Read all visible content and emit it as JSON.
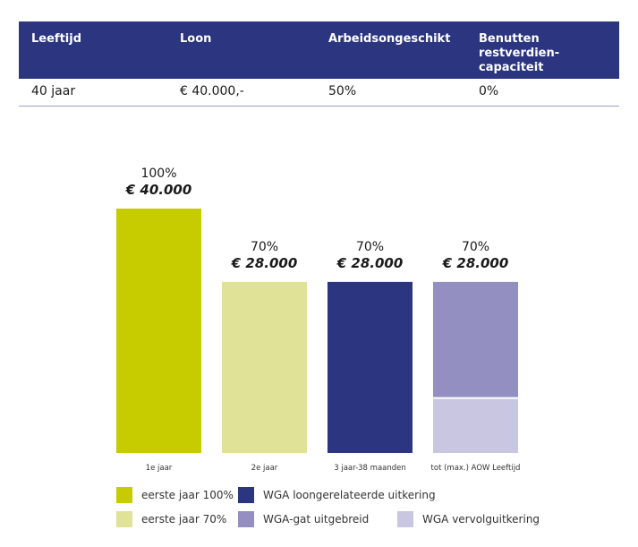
{
  "table": {
    "headers": [
      "Leeftijd",
      "Loon",
      "Arbeidsongeschikt",
      "Benutten restverdien-capaciteit"
    ],
    "row": [
      "40 jaar",
      "€ 40.000,-",
      "50%",
      "0%"
    ]
  },
  "chart_data": {
    "type": "bar",
    "categories": [
      "1e jaar",
      "2e jaar",
      "3 jaar-38 maanden",
      "tot (max.) AOW Leeftijd"
    ],
    "percent_labels": [
      "100%",
      "70%",
      "70%",
      "70%"
    ],
    "amount_labels": [
      "€ 40.000",
      "€ 28.000",
      "€ 28.000",
      "€ 28.000"
    ],
    "values": [
      40000,
      28000,
      28000,
      28000
    ],
    "stack_last": [
      {
        "series": "WGA-gat uitgebreid",
        "value": 19000
      },
      {
        "series": "WGA vervolguitkering",
        "value": 9000
      }
    ],
    "ylim": [
      0,
      40000
    ],
    "bar_colors": [
      "#c6cc00",
      "#dfe297",
      "#2b3580",
      "#938fc0"
    ],
    "stack_bottom_color": "#c9c6e1",
    "legend": [
      {
        "label": "eerste jaar 100%",
        "color": "#c6cc00"
      },
      {
        "label": "WGA loongerelateerde uitkering",
        "color": "#2b3580"
      },
      {
        "label": "eerste jaar 70%",
        "color": "#dfe297"
      },
      {
        "label": "WGA-gat uitgebreid",
        "color": "#938fc0"
      },
      {
        "label": "WGA vervolguitkering",
        "color": "#c9c6e1"
      }
    ]
  }
}
